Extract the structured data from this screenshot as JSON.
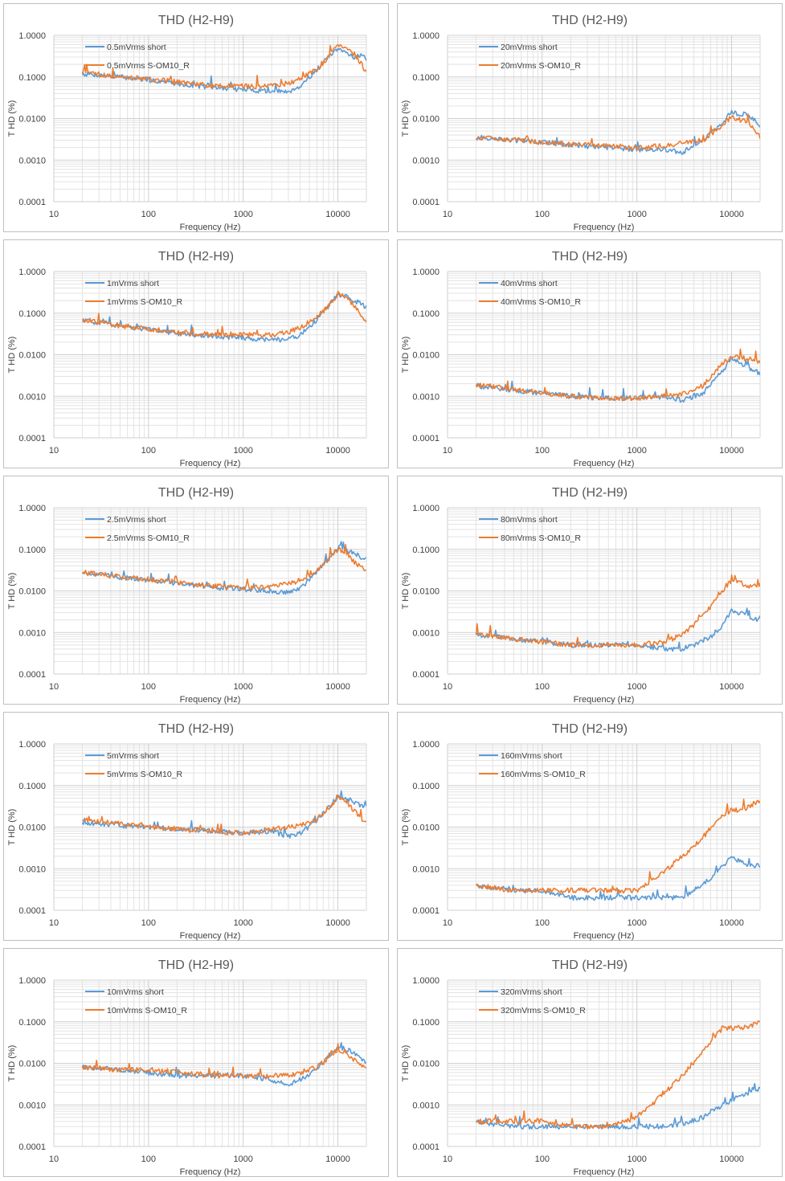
{
  "chart_data": [
    {
      "type": "line",
      "title": "THD (H2-H9)",
      "xlabel": "Frequency (Hz)",
      "ylabel": "T HD (%)",
      "xscale": "log",
      "yscale": "log",
      "xlim": [
        10,
        20000
      ],
      "ylim": [
        0.0001,
        1
      ],
      "xticks": [
        "10",
        "100",
        "1000",
        "10000"
      ],
      "yticks": [
        "0.0001",
        "0.0010",
        "0.0100",
        "0.1000",
        "1.0000"
      ],
      "grid": true,
      "legend": "top-left",
      "series": [
        {
          "name": "0.5mVrms short",
          "color": "#5b9bd5",
          "x": [
            20,
            50,
            100,
            200,
            500,
            1000,
            2000,
            3000,
            4000,
            6000,
            8000,
            10000,
            12000,
            15000,
            18000,
            20000
          ],
          "y": [
            0.12,
            0.1,
            0.085,
            0.07,
            0.055,
            0.05,
            0.045,
            0.045,
            0.06,
            0.15,
            0.3,
            0.45,
            0.4,
            0.3,
            0.35,
            0.25
          ]
        },
        {
          "name": "0.5mVrms S-OM10_R",
          "color": "#ed7d31",
          "x": [
            20,
            50,
            100,
            200,
            500,
            1000,
            2000,
            3000,
            4000,
            6000,
            8000,
            10000,
            12000,
            15000,
            18000,
            20000
          ],
          "y": [
            0.13,
            0.1,
            0.09,
            0.075,
            0.06,
            0.06,
            0.06,
            0.07,
            0.09,
            0.15,
            0.3,
            0.55,
            0.5,
            0.35,
            0.2,
            0.12
          ]
        }
      ]
    },
    {
      "type": "line",
      "title": "THD (H2-H9)",
      "xlabel": "Frequency (Hz)",
      "ylabel": "T HD (%)",
      "xscale": "log",
      "yscale": "log",
      "xlim": [
        10,
        20000
      ],
      "ylim": [
        0.0001,
        1
      ],
      "xticks": [
        "10",
        "100",
        "1000",
        "10000"
      ],
      "yticks": [
        "0.0001",
        "0.0010",
        "0.0100",
        "0.1000",
        "1.0000"
      ],
      "grid": true,
      "legend": "top-left",
      "series": [
        {
          "name": "20mVrms short",
          "color": "#5b9bd5",
          "x": [
            20,
            50,
            100,
            200,
            500,
            1000,
            2000,
            3000,
            5000,
            8000,
            10000,
            15000,
            20000
          ],
          "y": [
            0.0035,
            0.003,
            0.0027,
            0.0023,
            0.002,
            0.0018,
            0.0018,
            0.0015,
            0.003,
            0.008,
            0.014,
            0.012,
            0.007
          ]
        },
        {
          "name": "20mVrms S-OM10_R",
          "color": "#ed7d31",
          "x": [
            20,
            50,
            100,
            200,
            500,
            1000,
            2000,
            3000,
            5000,
            8000,
            10000,
            15000,
            20000
          ],
          "y": [
            0.0035,
            0.0031,
            0.0027,
            0.0024,
            0.0022,
            0.002,
            0.0022,
            0.0025,
            0.003,
            0.007,
            0.011,
            0.008,
            0.0035
          ]
        }
      ]
    },
    {
      "type": "line",
      "title": "THD (H2-H9)",
      "xlabel": "Frequency (Hz)",
      "ylabel": "T HD (%)",
      "xscale": "log",
      "yscale": "log",
      "xlim": [
        10,
        20000
      ],
      "ylim": [
        0.0001,
        1
      ],
      "xticks": [
        "10",
        "100",
        "1000",
        "10000"
      ],
      "yticks": [
        "0.0001",
        "0.0010",
        "0.0100",
        "0.1000",
        "1.0000"
      ],
      "grid": true,
      "legend": "top-left",
      "series": [
        {
          "name": "1mVrms short",
          "color": "#5b9bd5",
          "x": [
            20,
            50,
            100,
            200,
            500,
            1000,
            2000,
            3000,
            4000,
            6000,
            8000,
            10000,
            12000,
            15000,
            20000
          ],
          "y": [
            0.065,
            0.05,
            0.04,
            0.033,
            0.028,
            0.025,
            0.023,
            0.023,
            0.03,
            0.07,
            0.15,
            0.28,
            0.27,
            0.2,
            0.14
          ]
        },
        {
          "name": "1mVrms S-OM10_R",
          "color": "#ed7d31",
          "x": [
            20,
            50,
            100,
            200,
            500,
            1000,
            2000,
            3000,
            4000,
            6000,
            8000,
            10000,
            12000,
            15000,
            20000
          ],
          "y": [
            0.07,
            0.05,
            0.042,
            0.035,
            0.03,
            0.03,
            0.03,
            0.035,
            0.045,
            0.08,
            0.15,
            0.3,
            0.25,
            0.15,
            0.06
          ]
        }
      ]
    },
    {
      "type": "line",
      "title": "THD (H2-H9)",
      "xlabel": "Frequency (Hz)",
      "ylabel": "T HD (%)",
      "xscale": "log",
      "yscale": "log",
      "xlim": [
        10,
        20000
      ],
      "ylim": [
        0.0001,
        1
      ],
      "xticks": [
        "10",
        "100",
        "1000",
        "10000"
      ],
      "yticks": [
        "0.0001",
        "0.0010",
        "0.0100",
        "0.1000",
        "1.0000"
      ],
      "grid": true,
      "legend": "top-left",
      "series": [
        {
          "name": "40mVrms short",
          "color": "#5b9bd5",
          "x": [
            20,
            50,
            100,
            200,
            500,
            1000,
            2000,
            3000,
            5000,
            8000,
            10000,
            15000,
            20000
          ],
          "y": [
            0.0018,
            0.0014,
            0.0012,
            0.001,
            0.0009,
            0.0009,
            0.001,
            0.0008,
            0.0012,
            0.004,
            0.008,
            0.005,
            0.0035
          ]
        },
        {
          "name": "40mVrms S-OM10_R",
          "color": "#ed7d31",
          "x": [
            20,
            50,
            100,
            200,
            500,
            1000,
            2000,
            3000,
            5000,
            8000,
            10000,
            15000,
            20000
          ],
          "y": [
            0.0019,
            0.0015,
            0.0012,
            0.001,
            0.0009,
            0.0009,
            0.001,
            0.0011,
            0.0018,
            0.006,
            0.009,
            0.008,
            0.007
          ]
        }
      ]
    },
    {
      "type": "line",
      "title": "THD (H2-H9)",
      "xlabel": "Frequency (Hz)",
      "ylabel": "T HD (%)",
      "xscale": "log",
      "yscale": "log",
      "xlim": [
        10,
        20000
      ],
      "ylim": [
        0.0001,
        1
      ],
      "xticks": [
        "10",
        "100",
        "1000",
        "10000"
      ],
      "yticks": [
        "0.0001",
        "0.0010",
        "0.0100",
        "0.1000",
        "1.0000"
      ],
      "grid": true,
      "legend": "top-left",
      "series": [
        {
          "name": "2.5mVrms short",
          "color": "#5b9bd5",
          "x": [
            20,
            50,
            100,
            200,
            500,
            1000,
            2000,
            3000,
            4000,
            6000,
            8000,
            10000,
            12000,
            15000,
            20000
          ],
          "y": [
            0.028,
            0.021,
            0.018,
            0.015,
            0.012,
            0.011,
            0.01,
            0.009,
            0.011,
            0.03,
            0.06,
            0.11,
            0.1,
            0.08,
            0.055
          ]
        },
        {
          "name": "2.5mVrms S-OM10_R",
          "color": "#ed7d31",
          "x": [
            20,
            50,
            100,
            200,
            500,
            1000,
            2000,
            3000,
            4000,
            6000,
            8000,
            10000,
            12000,
            15000,
            20000
          ],
          "y": [
            0.028,
            0.022,
            0.019,
            0.016,
            0.013,
            0.012,
            0.013,
            0.015,
            0.018,
            0.03,
            0.06,
            0.1,
            0.08,
            0.05,
            0.03
          ]
        }
      ]
    },
    {
      "type": "line",
      "title": "THD (H2-H9)",
      "xlabel": "Frequency (Hz)",
      "ylabel": "T HD (%)",
      "xscale": "log",
      "yscale": "log",
      "xlim": [
        10,
        20000
      ],
      "ylim": [
        0.0001,
        1
      ],
      "xticks": [
        "10",
        "100",
        "1000",
        "10000"
      ],
      "yticks": [
        "0.0001",
        "0.0010",
        "0.0100",
        "0.1000",
        "1.0000"
      ],
      "grid": true,
      "legend": "top-left",
      "series": [
        {
          "name": "80mVrms short",
          "color": "#5b9bd5",
          "x": [
            20,
            50,
            100,
            200,
            500,
            1000,
            2000,
            3000,
            4000,
            6000,
            8000,
            10000,
            12000,
            15000,
            18000,
            20000
          ],
          "y": [
            0.0009,
            0.0007,
            0.0006,
            0.0005,
            0.0005,
            0.0005,
            0.0004,
            0.0004,
            0.0005,
            0.0008,
            0.0015,
            0.0035,
            0.003,
            0.0025,
            0.002,
            0.0025
          ]
        },
        {
          "name": "80mVrms S-OM10_R",
          "color": "#ed7d31",
          "x": [
            20,
            50,
            100,
            200,
            500,
            1000,
            2000,
            3000,
            4000,
            6000,
            8000,
            10000,
            12000,
            15000,
            18000,
            20000
          ],
          "y": [
            0.0009,
            0.0007,
            0.0006,
            0.0005,
            0.0005,
            0.0005,
            0.0006,
            0.0009,
            0.0015,
            0.004,
            0.01,
            0.018,
            0.016,
            0.013,
            0.014,
            0.014
          ]
        }
      ]
    },
    {
      "type": "line",
      "title": "THD (H2-H9)",
      "xlabel": "Frequency (Hz)",
      "ylabel": "T HD (%)",
      "xscale": "log",
      "yscale": "log",
      "xlim": [
        10,
        20000
      ],
      "ylim": [
        0.0001,
        1
      ],
      "xticks": [
        "10",
        "100",
        "1000",
        "10000"
      ],
      "yticks": [
        "0.0001",
        "0.0010",
        "0.0100",
        "0.1000",
        "1.0000"
      ],
      "grid": true,
      "legend": "top-left",
      "series": [
        {
          "name": "5mVrms short",
          "color": "#5b9bd5",
          "x": [
            20,
            50,
            100,
            200,
            500,
            1000,
            2000,
            3000,
            4000,
            6000,
            8000,
            10000,
            12000,
            15000,
            20000
          ],
          "y": [
            0.013,
            0.011,
            0.01,
            0.009,
            0.008,
            0.007,
            0.008,
            0.006,
            0.007,
            0.015,
            0.03,
            0.055,
            0.05,
            0.04,
            0.03
          ]
        },
        {
          "name": "5mVrms S-OM10_R",
          "color": "#ed7d31",
          "x": [
            20,
            50,
            100,
            200,
            500,
            1000,
            2000,
            3000,
            4000,
            6000,
            8000,
            10000,
            12000,
            15000,
            20000
          ],
          "y": [
            0.015,
            0.012,
            0.01,
            0.009,
            0.008,
            0.007,
            0.009,
            0.01,
            0.011,
            0.015,
            0.03,
            0.05,
            0.04,
            0.025,
            0.012
          ]
        }
      ]
    },
    {
      "type": "line",
      "title": "THD (H2-H9)",
      "xlabel": "Frequency (Hz)",
      "ylabel": "T HD (%)",
      "xscale": "log",
      "yscale": "log",
      "xlim": [
        10,
        20000
      ],
      "ylim": [
        0.0001,
        1
      ],
      "xticks": [
        "10",
        "100",
        "1000",
        "10000"
      ],
      "yticks": [
        "0.0001",
        "0.0010",
        "0.0100",
        "0.1000",
        "1.0000"
      ],
      "grid": true,
      "legend": "top-left",
      "series": [
        {
          "name": "160mVrms short",
          "color": "#5b9bd5",
          "x": [
            20,
            50,
            100,
            200,
            500,
            1000,
            2000,
            3000,
            4000,
            6000,
            8000,
            10000,
            12000,
            15000,
            20000
          ],
          "y": [
            0.0004,
            0.0003,
            0.0003,
            0.0002,
            0.0002,
            0.0002,
            0.0002,
            0.0002,
            0.0003,
            0.0006,
            0.0012,
            0.0018,
            0.0015,
            0.0012,
            0.0012
          ]
        },
        {
          "name": "160mVrms S-OM10_R",
          "color": "#ed7d31",
          "x": [
            20,
            50,
            100,
            200,
            500,
            1000,
            2000,
            3000,
            4000,
            6000,
            8000,
            10000,
            12000,
            15000,
            20000
          ],
          "y": [
            0.0004,
            0.0003,
            0.0003,
            0.0003,
            0.0003,
            0.0003,
            0.0009,
            0.002,
            0.0035,
            0.009,
            0.02,
            0.025,
            0.025,
            0.03,
            0.045
          ]
        }
      ]
    },
    {
      "type": "line",
      "title": "THD (H2-H9)",
      "xlabel": "Frequency (Hz)",
      "ylabel": "T HD (%)",
      "xscale": "log",
      "yscale": "log",
      "xlim": [
        10,
        20000
      ],
      "ylim": [
        0.0001,
        1
      ],
      "xticks": [
        "10",
        "100",
        "1000",
        "10000"
      ],
      "yticks": [
        "0.0001",
        "0.0010",
        "0.0100",
        "0.1000",
        "1.0000"
      ],
      "grid": true,
      "legend": "top-left",
      "series": [
        {
          "name": "10mVrms short",
          "color": "#5b9bd5",
          "x": [
            20,
            50,
            100,
            200,
            500,
            1000,
            2000,
            3000,
            4000,
            6000,
            8000,
            10000,
            12000,
            15000,
            20000
          ],
          "y": [
            0.008,
            0.007,
            0.006,
            0.005,
            0.005,
            0.005,
            0.004,
            0.003,
            0.004,
            0.007,
            0.015,
            0.025,
            0.022,
            0.018,
            0.01
          ]
        },
        {
          "name": "10mVrms S-OM10_R",
          "color": "#ed7d31",
          "x": [
            20,
            50,
            100,
            200,
            500,
            1000,
            2000,
            3000,
            4000,
            6000,
            8000,
            10000,
            12000,
            15000,
            20000
          ],
          "y": [
            0.008,
            0.007,
            0.007,
            0.006,
            0.005,
            0.005,
            0.005,
            0.005,
            0.006,
            0.008,
            0.014,
            0.022,
            0.018,
            0.012,
            0.007
          ]
        }
      ]
    },
    {
      "type": "line",
      "title": "THD (H2-H9)",
      "xlabel": "Frequency (Hz)",
      "ylabel": "T HD (%)",
      "xscale": "log",
      "yscale": "log",
      "xlim": [
        10,
        20000
      ],
      "ylim": [
        0.0001,
        1
      ],
      "xticks": [
        "10",
        "100",
        "1000",
        "10000"
      ],
      "yticks": [
        "0.0001",
        "0.0010",
        "0.0100",
        "0.1000",
        "1.0000"
      ],
      "grid": true,
      "legend": "top-left",
      "series": [
        {
          "name": "320mVrms short",
          "color": "#5b9bd5",
          "x": [
            20,
            50,
            100,
            200,
            500,
            1000,
            2000,
            3000,
            5000,
            8000,
            10000,
            15000,
            20000
          ],
          "y": [
            0.0004,
            0.0003,
            0.0003,
            0.0003,
            0.0003,
            0.0003,
            0.0003,
            0.00035,
            0.0005,
            0.001,
            0.0013,
            0.0019,
            0.0025
          ]
        },
        {
          "name": "320mVrms S-OM10_R",
          "color": "#ed7d31",
          "x": [
            20,
            50,
            100,
            200,
            500,
            1000,
            2000,
            3000,
            5000,
            8000,
            10000,
            15000,
            20000
          ],
          "y": [
            0.0004,
            0.0004,
            0.0004,
            0.0003,
            0.0003,
            0.0005,
            0.002,
            0.005,
            0.02,
            0.07,
            0.07,
            0.075,
            0.1
          ]
        }
      ]
    }
  ]
}
